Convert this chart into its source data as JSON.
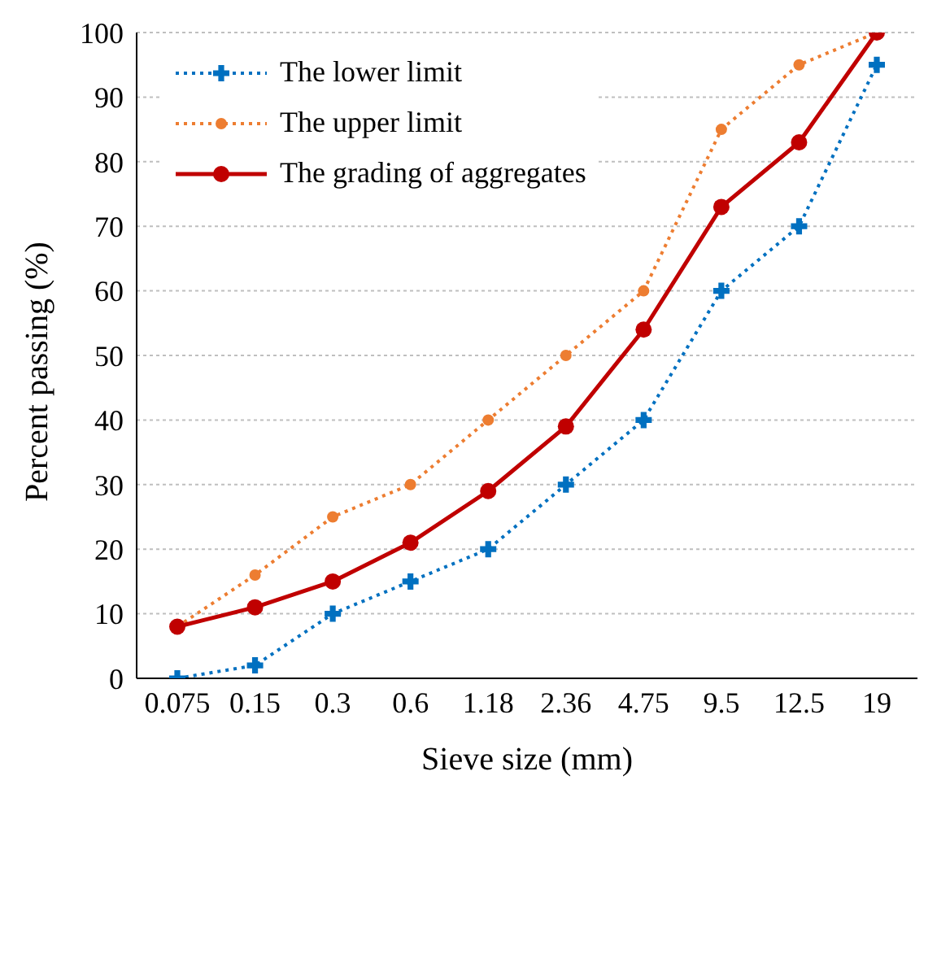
{
  "chart_data": {
    "type": "line",
    "xlabel": "Sieve size (mm)",
    "ylabel": "Percent passing (%)",
    "categories": [
      "0.075",
      "0.15",
      "0.3",
      "0.6",
      "1.18",
      "2.36",
      "4.75",
      "9.5",
      "12.5",
      "19"
    ],
    "series": [
      {
        "name": "The lower limit",
        "color": "#0070c0",
        "values": [
          0,
          2,
          10,
          15,
          20,
          30,
          40,
          60,
          70,
          95
        ],
        "marker": "cross",
        "line_style": "dotted"
      },
      {
        "name": "The upper limit",
        "color": "#ed7d31",
        "values": [
          8,
          16,
          25,
          30,
          40,
          50,
          60,
          85,
          95,
          100
        ],
        "marker": "circle",
        "line_style": "dotted"
      },
      {
        "name": "The grading of aggregates",
        "color": "#c00000",
        "values": [
          8,
          11,
          15,
          21,
          29,
          39,
          54,
          73,
          83,
          100
        ],
        "marker": "circle",
        "line_style": "solid"
      }
    ],
    "ylim": [
      0,
      100
    ],
    "yticks": [
      0,
      10,
      20,
      30,
      40,
      50,
      60,
      70,
      80,
      90,
      100
    ],
    "grid": "y",
    "legend": "top left"
  }
}
